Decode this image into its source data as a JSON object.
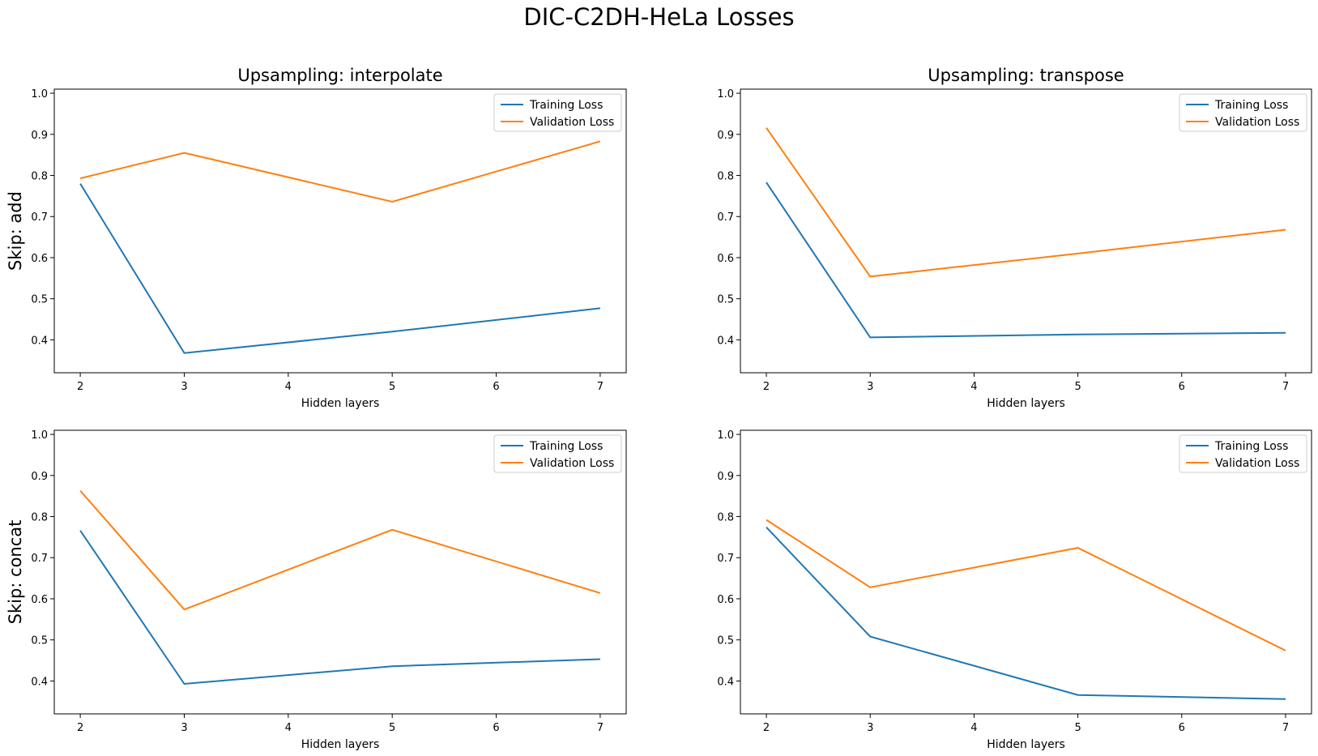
{
  "figure": {
    "title": "DIC-C2DH-HeLa Losses",
    "col_titles": [
      "Upsampling: interpolate",
      "Upsampling: transpose"
    ],
    "row_labels": [
      "Skip: add",
      "Skip: concat"
    ]
  },
  "colors": {
    "training": "#1f77b4",
    "validation": "#ff7f0e"
  },
  "chart_data": [
    {
      "type": "line",
      "title": "Upsampling: interpolate",
      "row_label": "Skip: add",
      "xlabel": "Hidden layers",
      "ylabel": "",
      "x": [
        2,
        3,
        5,
        7
      ],
      "xticks": [
        2,
        3,
        4,
        5,
        6,
        7
      ],
      "yticks": [
        0.4,
        0.5,
        0.6,
        0.7,
        0.8,
        0.9,
        1.0
      ],
      "ylim": [
        0.32,
        1.01
      ],
      "xlim": [
        1.75,
        7.25
      ],
      "legend": "top-right",
      "series": [
        {
          "name": "Training Loss",
          "values": [
            0.78,
            0.368,
            0.42,
            0.477
          ]
        },
        {
          "name": "Validation Loss",
          "values": [
            0.793,
            0.855,
            0.736,
            0.883
          ]
        }
      ]
    },
    {
      "type": "line",
      "title": "Upsampling: transpose",
      "row_label": "",
      "xlabel": "Hidden layers",
      "ylabel": "",
      "x": [
        2,
        3,
        5,
        7
      ],
      "xticks": [
        2,
        3,
        4,
        5,
        6,
        7
      ],
      "yticks": [
        0.4,
        0.5,
        0.6,
        0.7,
        0.8,
        0.9,
        1.0
      ],
      "ylim": [
        0.32,
        1.01
      ],
      "xlim": [
        1.75,
        7.25
      ],
      "legend": "top-right",
      "series": [
        {
          "name": "Training Loss",
          "values": [
            0.783,
            0.406,
            0.413,
            0.417
          ]
        },
        {
          "name": "Validation Loss",
          "values": [
            0.916,
            0.554,
            0.61,
            0.668
          ]
        }
      ]
    },
    {
      "type": "line",
      "title": "",
      "row_label": "Skip: concat",
      "xlabel": "Hidden layers",
      "ylabel": "",
      "x": [
        2,
        3,
        5,
        7
      ],
      "xticks": [
        2,
        3,
        4,
        5,
        6,
        7
      ],
      "yticks": [
        0.4,
        0.5,
        0.6,
        0.7,
        0.8,
        0.9,
        1.0
      ],
      "ylim": [
        0.32,
        1.01
      ],
      "xlim": [
        1.75,
        7.25
      ],
      "legend": "top-right",
      "series": [
        {
          "name": "Training Loss",
          "values": [
            0.766,
            0.393,
            0.436,
            0.453
          ]
        },
        {
          "name": "Validation Loss",
          "values": [
            0.863,
            0.574,
            0.768,
            0.614
          ]
        }
      ]
    },
    {
      "type": "line",
      "title": "",
      "row_label": "",
      "xlabel": "Hidden layers",
      "ylabel": "",
      "x": [
        2,
        3,
        5,
        7
      ],
      "xticks": [
        2,
        3,
        4,
        5,
        6,
        7
      ],
      "yticks": [
        0.4,
        0.5,
        0.6,
        0.7,
        0.8,
        0.9,
        1.0
      ],
      "ylim": [
        0.32,
        1.01
      ],
      "xlim": [
        1.75,
        7.25
      ],
      "legend": "top-right",
      "series": [
        {
          "name": "Training Loss",
          "values": [
            0.774,
            0.508,
            0.366,
            0.356
          ]
        },
        {
          "name": "Validation Loss",
          "values": [
            0.792,
            0.628,
            0.724,
            0.474
          ]
        }
      ]
    }
  ]
}
